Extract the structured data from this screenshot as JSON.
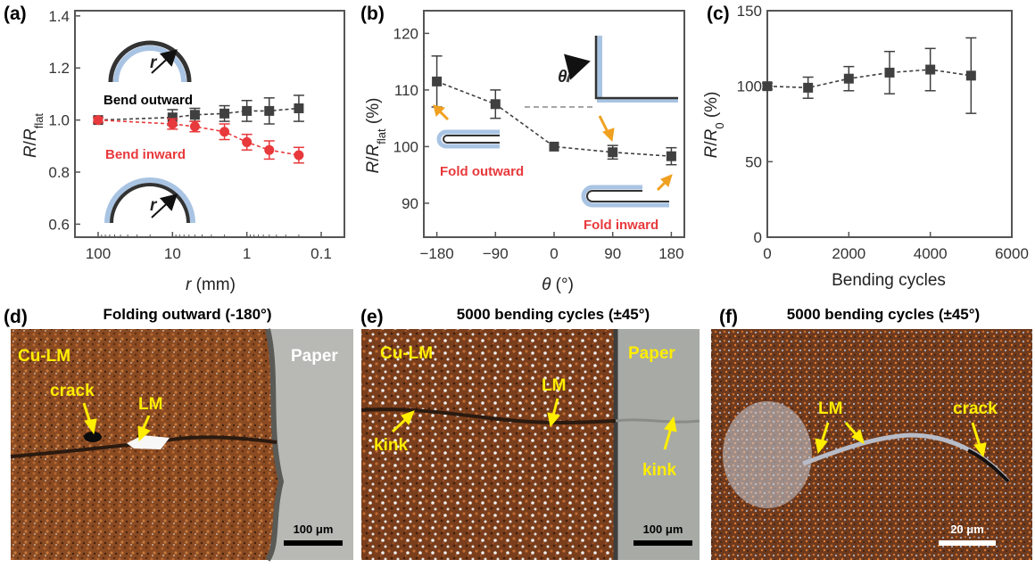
{
  "colors": {
    "series_dark": "#404040",
    "series_red": "#e8393c",
    "arrow_orange": "#f0a020",
    "strip_blue": "#a9c4e3",
    "photo_yellow": "#ffee00"
  },
  "chart_data": [
    {
      "panel": "(a)",
      "type": "scatter",
      "x_scale": "log",
      "x_reversed": true,
      "xlabel": "r (mm)",
      "ylabel": "R/R_flat",
      "xlim": [
        100,
        0.1
      ],
      "ylim": [
        0.55,
        1.42
      ],
      "xticks": [
        "100",
        "10",
        "1",
        "0.1"
      ],
      "yticks": [
        "0.6",
        "0.8",
        "1.0",
        "1.2",
        "1.4"
      ],
      "series": [
        {
          "name": "Bend outward",
          "marker": "square",
          "color": "#404040",
          "x": [
            100,
            10,
            5,
            2,
            1,
            0.5,
            0.2
          ],
          "y": [
            1.0,
            1.01,
            1.02,
            1.025,
            1.035,
            1.035,
            1.045
          ],
          "err": [
            0.01,
            0.03,
            0.025,
            0.03,
            0.04,
            0.05,
            0.05
          ]
        },
        {
          "name": "Bend inward",
          "marker": "circle",
          "color": "#e8393c",
          "x": [
            100,
            10,
            5,
            2,
            1,
            0.5,
            0.2
          ],
          "y": [
            1.0,
            0.985,
            0.975,
            0.955,
            0.915,
            0.885,
            0.865
          ],
          "err": [
            0.01,
            0.02,
            0.02,
            0.03,
            0.03,
            0.035,
            0.03
          ]
        }
      ],
      "annotations": [
        "Bend outward",
        "Bend inward",
        "r",
        "r"
      ]
    },
    {
      "panel": "(b)",
      "type": "line",
      "xlabel": "θ (°)",
      "ylabel": "R/R_flat (%)",
      "xlim": [
        -200,
        200
      ],
      "ylim": [
        84,
        124
      ],
      "xticks": [
        "−180",
        "−90",
        "0",
        "90",
        "180"
      ],
      "yticks": [
        "90",
        "100",
        "110",
        "120"
      ],
      "series": [
        {
          "marker": "square",
          "color": "#404040",
          "x": [
            -180,
            -90,
            0,
            90,
            180
          ],
          "y": [
            111.5,
            107.5,
            100,
            99,
            98.3
          ],
          "err": [
            4.5,
            2.5,
            0,
            1.2,
            1.5
          ]
        }
      ],
      "annotations": [
        "θ",
        "Fold outward",
        "Fold inward"
      ]
    },
    {
      "panel": "(c)",
      "type": "line",
      "xlabel": "Bending cycles",
      "ylabel": "R/R_0 (%)",
      "xlim": [
        0,
        6000
      ],
      "ylim": [
        0,
        150
      ],
      "xticks": [
        "0",
        "2000",
        "4000",
        "6000"
      ],
      "yticks": [
        "0",
        "50",
        "100",
        "150"
      ],
      "series": [
        {
          "marker": "square",
          "color": "#404040",
          "x": [
            0,
            1000,
            2000,
            3000,
            4000,
            5000
          ],
          "y": [
            100,
            99,
            105,
            109,
            111,
            107
          ],
          "err": [
            2,
            7,
            8,
            14,
            14,
            25
          ]
        }
      ]
    }
  ],
  "photos": [
    {
      "panel": "(d)",
      "title": "Folding outward (-180°)",
      "labels": [
        "Cu-LM",
        "crack",
        "LM"
      ],
      "paper_label": "Paper",
      "scale_bar": "100 μm"
    },
    {
      "panel": "(e)",
      "title": "5000 bending cycles (±45°)",
      "labels": [
        "Cu-LM",
        "LM",
        "kink",
        "Paper",
        "kink"
      ],
      "scale_bar": "100 μm"
    },
    {
      "panel": "(f)",
      "title": "5000 bending cycles (±45°)",
      "labels": [
        "LM",
        "crack"
      ],
      "scale_bar": "20 μm"
    }
  ]
}
